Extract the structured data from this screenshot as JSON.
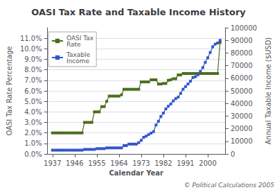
{
  "chart_data": {
    "type": "line",
    "title": "OASI Tax Rate and Taxable Income History",
    "xlabel": "Calendar Year",
    "ylabel": "OASI Tax Rate Percentage",
    "y2label": "Annual Taxable Income ($USD)",
    "annotation": "© Political Calculations 2005",
    "x": [
      1937,
      1938,
      1939,
      1940,
      1941,
      1942,
      1943,
      1944,
      1945,
      1946,
      1947,
      1948,
      1949,
      1950,
      1951,
      1952,
      1953,
      1954,
      1955,
      1956,
      1957,
      1958,
      1959,
      1960,
      1961,
      1962,
      1963,
      1964,
      1965,
      1966,
      1967,
      1968,
      1969,
      1970,
      1971,
      1972,
      1973,
      1974,
      1975,
      1976,
      1977,
      1978,
      1979,
      1980,
      1981,
      1982,
      1983,
      1984,
      1985,
      1986,
      1987,
      1988,
      1989,
      1990,
      1991,
      1992,
      1993,
      1994,
      1995,
      1996,
      1997,
      1998,
      1999,
      2000,
      2001,
      2002,
      2003,
      2004,
      2005
    ],
    "series": [
      {
        "name": "OASI Tax\nRate",
        "color": "#4a6e1a",
        "marker": "square",
        "values": [
          0.02,
          0.02,
          0.02,
          0.02,
          0.02,
          0.02,
          0.02,
          0.02,
          0.02,
          0.02,
          0.02,
          0.02,
          0.02,
          0.03,
          0.03,
          0.03,
          0.03,
          0.04,
          0.04,
          0.04,
          0.045,
          0.045,
          0.05,
          0.055,
          0.055,
          0.055,
          0.055,
          0.055,
          0.05625,
          0.0615,
          0.0615,
          0.0615,
          0.0615,
          0.0615,
          0.0615,
          0.0615,
          0.0685,
          0.0685,
          0.0685,
          0.0685,
          0.0705,
          0.0705,
          0.0705,
          0.0665,
          0.0665,
          0.067,
          0.067,
          0.07,
          0.0705,
          0.0715,
          0.0715,
          0.0751,
          0.0751,
          0.0765,
          0.0765,
          0.0765,
          0.0765,
          0.0765,
          0.0765,
          0.0765,
          0.0765,
          0.0765,
          0.0765,
          0.0765,
          0.0765,
          0.0765,
          0.0765,
          0.0765,
          0.106
        ]
      },
      {
        "name": "Taxable\nIncome",
        "color": "#3355cc",
        "marker": "square",
        "axis": "y2",
        "values": [
          3000,
          3000,
          3000,
          3000,
          3000,
          3000,
          3000,
          3000,
          3000,
          3000,
          3000,
          3000,
          3000,
          3600,
          3600,
          3600,
          3600,
          3600,
          4200,
          4200,
          4200,
          4200,
          4800,
          4800,
          4800,
          4800,
          4800,
          4800,
          4800,
          6600,
          6600,
          7800,
          7800,
          7800,
          7800,
          9000,
          10800,
          13200,
          14100,
          15300,
          16500,
          17700,
          22900,
          25900,
          29700,
          32400,
          35700,
          37800,
          39600,
          42000,
          43800,
          45000,
          48000,
          51300,
          53400,
          55500,
          57600,
          60600,
          61200,
          62700,
          65400,
          68400,
          72600,
          76200,
          80400,
          84900,
          87000,
          87900,
          90000
        ]
      }
    ],
    "xlim": [
      1935,
      2007
    ],
    "xticks": [
      1937,
      1946,
      1955,
      1964,
      1973,
      1982,
      1991,
      2000
    ],
    "ylim": [
      0.0,
      0.12
    ],
    "yticks": [
      {
        "value": 0.0,
        "label": "0.0%"
      },
      {
        "value": 0.01,
        "label": "1.0%"
      },
      {
        "value": 0.02,
        "label": "2.0%"
      },
      {
        "value": 0.03,
        "label": "3.0%"
      },
      {
        "value": 0.04,
        "label": "4.0%"
      },
      {
        "value": 0.05,
        "label": "5.0%"
      },
      {
        "value": 0.06,
        "label": "6.0%"
      },
      {
        "value": 0.07,
        "label": "7.0%"
      },
      {
        "value": 0.08,
        "label": "8.0%"
      },
      {
        "value": 0.09,
        "label": "9.0%"
      },
      {
        "value": 0.1,
        "label": "10.0%"
      },
      {
        "value": 0.11,
        "label": "11.0%"
      }
    ],
    "y2lim": [
      0,
      100000
    ],
    "y2ticks": [
      0,
      10000,
      20000,
      30000,
      40000,
      50000,
      60000,
      70000,
      80000,
      90000,
      100000
    ],
    "grid": true,
    "legend": "upper left"
  }
}
